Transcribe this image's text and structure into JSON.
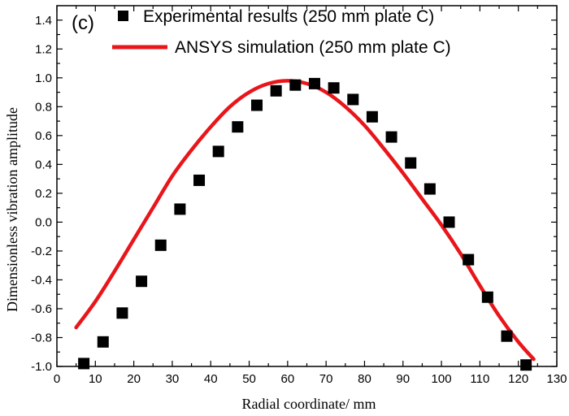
{
  "chart_data": {
    "type": "scatter",
    "panel_label": "(c)",
    "xlabel": "Radial coordinate/ mm",
    "ylabel": "Dimensionless vibration amplitude",
    "xlim": [
      0,
      130
    ],
    "ylim": [
      -1.0,
      1.5
    ],
    "x_ticks": [
      0,
      10,
      20,
      30,
      40,
      50,
      60,
      70,
      80,
      90,
      100,
      110,
      120,
      130
    ],
    "x_tick_labels": [
      "0",
      "10",
      "20",
      "30",
      "40",
      "50",
      "60",
      "70",
      "80",
      "90",
      "100",
      "110",
      "120",
      "130"
    ],
    "y_ticks": [
      -1.0,
      -0.8,
      -0.6,
      -0.4,
      -0.2,
      0.0,
      0.2,
      0.4,
      0.6,
      0.8,
      1.0,
      1.2,
      1.4
    ],
    "y_tick_labels": [
      "-1.0",
      "-0.8",
      "-0.6",
      "-0.4",
      "-0.2",
      "0.0",
      "0.2",
      "0.4",
      "0.6",
      "0.8",
      "1.0",
      "1.2",
      "1.4"
    ],
    "grid": false,
    "legend_position": "top-right",
    "series": [
      {
        "name": "Experimental results (250 mm plate C)",
        "kind": "scatter",
        "marker": "square",
        "color": "#000000",
        "x": [
          7,
          12,
          17,
          22,
          27,
          32,
          37,
          42,
          47,
          52,
          57,
          62,
          67,
          72,
          77,
          82,
          87,
          92,
          97,
          102,
          107,
          112,
          117,
          122
        ],
        "y": [
          -0.98,
          -0.83,
          -0.63,
          -0.41,
          -0.16,
          0.09,
          0.29,
          0.49,
          0.66,
          0.81,
          0.91,
          0.95,
          0.96,
          0.93,
          0.85,
          0.73,
          0.59,
          0.41,
          0.23,
          0.0,
          -0.26,
          -0.52,
          -0.79,
          -0.99
        ]
      },
      {
        "name": "ANSYS simulation (250 mm plate C)",
        "kind": "line",
        "color": "#e8161b",
        "x": [
          5,
          10,
          15,
          20,
          25,
          30,
          35,
          40,
          45,
          50,
          55,
          60,
          65,
          70,
          75,
          80,
          85,
          90,
          95,
          100,
          105,
          110,
          115,
          120,
          124
        ],
        "y": [
          -0.73,
          -0.55,
          -0.34,
          -0.12,
          0.1,
          0.32,
          0.5,
          0.66,
          0.8,
          0.9,
          0.96,
          0.98,
          0.96,
          0.9,
          0.8,
          0.67,
          0.51,
          0.34,
          0.16,
          -0.02,
          -0.22,
          -0.44,
          -0.65,
          -0.83,
          -0.95
        ]
      }
    ]
  }
}
